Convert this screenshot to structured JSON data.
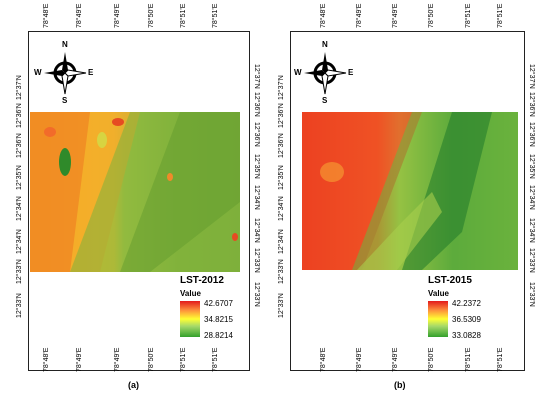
{
  "panels": [
    {
      "id": "a",
      "top_ticks": [
        "78°48'E",
        "78°49'E",
        "78°49'E",
        "78°50'E",
        "78°51'E",
        "78°51'E"
      ],
      "bottom_ticks": [
        "78°48'E",
        "78°49'E",
        "78°49'E",
        "78°50'E",
        "78°51'E",
        "78°51'E"
      ],
      "left_ticks": [
        "12°37'N",
        "12°36'N",
        "12°36'N",
        "12°35'N",
        "12°34'N",
        "12°34'N",
        "12°33'N",
        "12°33'N"
      ],
      "right_ticks": [
        "12°37'N",
        "12°36'N",
        "12°36'N",
        "12°35'N",
        "12°34'N",
        "12°34'N",
        "12°33'N",
        "12°33'N"
      ],
      "north_labels": {
        "n": "N",
        "s": "S",
        "e": "E",
        "w": "W"
      },
      "legend": {
        "title": "LST-2012",
        "subtitle": "Value",
        "max": "42.6707",
        "mid": "34.8215",
        "min": "28.8214"
      },
      "caption": "(a)"
    },
    {
      "id": "b",
      "top_ticks": [
        "78°48'E",
        "78°49'E",
        "78°49'E",
        "78°50'E",
        "78°51'E",
        "78°51'E"
      ],
      "bottom_ticks": [
        "78°48'E",
        "78°49'E",
        "78°49'E",
        "78°50'E",
        "78°51'E",
        "78°51'E"
      ],
      "left_ticks": [
        "12°37'N",
        "12°36'N",
        "12°36'N",
        "12°35'N",
        "12°34'N",
        "12°34'N",
        "12°33'N",
        "12°33'N"
      ],
      "right_ticks": [
        "12°37'N",
        "12°36'N",
        "12°36'N",
        "12°35'N",
        "12°34'N",
        "12°34'N",
        "12°33'N",
        "12°33'N"
      ],
      "north_labels": {
        "n": "N",
        "s": "S",
        "e": "E",
        "w": "W"
      },
      "legend": {
        "title": "LST-2015",
        "subtitle": "Value",
        "max": "42.2372",
        "mid": "36.5309",
        "min": "33.0828"
      },
      "caption": "(b)"
    }
  ],
  "colors": {
    "hot": "#e31a1c",
    "warm": "#fd8d3c",
    "mid": "#ffff33",
    "cool": "#a6d96a",
    "cold": "#33a02c"
  }
}
